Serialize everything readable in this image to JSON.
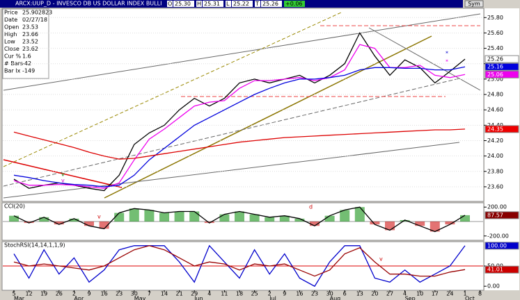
{
  "header": {
    "title": "ARCX:UUP_D - INVESCO DB US DOLLAR INDEX BULLI",
    "fields": [
      {
        "label": "O",
        "value": "25.30"
      },
      {
        "label": "H",
        "value": "25.31"
      },
      {
        "label": "L",
        "value": "25.22"
      },
      {
        "label": "T",
        "value": "25.26"
      }
    ],
    "change": "+0.06",
    "symbol_button": "Sym"
  },
  "info": [
    {
      "label": "Price",
      "value": "25.902823"
    },
    {
      "label": "Date",
      "value": "02/27/18"
    },
    {
      "label": "Open",
      "value": "23.53"
    },
    {
      "label": "High",
      "value": "23.66"
    },
    {
      "label": "Low",
      "value": "23.52"
    },
    {
      "label": "Close",
      "value": "23.62"
    },
    {
      "label": "Cur %",
      "value": "1.6"
    },
    {
      "label": "# Bars",
      "value": "-42"
    },
    {
      "label": "Bar Ix",
      "value": "-149"
    }
  ],
  "annotations": [
    "v",
    "v",
    "v",
    "d",
    "v",
    "*",
    "*"
  ],
  "chart_data": [
    {
      "type": "line",
      "categories": [
        "5",
        "12",
        "19",
        "26",
        "2",
        "9",
        "16",
        "23",
        "30",
        "7",
        "14",
        "21",
        "29",
        "4",
        "11",
        "18",
        "25",
        "2",
        "9",
        "16",
        "23",
        "30",
        "6",
        "13",
        "20",
        "27",
        "4",
        "10",
        "17",
        "24",
        "1",
        "8"
      ],
      "months": [
        "Mar",
        "Apr",
        "May",
        "Jun",
        "Jul",
        "Aug",
        "Sep",
        "Oct"
      ],
      "ylim": [
        23.41,
        25.92
      ],
      "yticks": [
        {
          "value": 23.6,
          "label": "23.60"
        },
        {
          "value": 23.8,
          "label": "23.80"
        },
        {
          "value": 24.0,
          "label": "24.00"
        },
        {
          "value": 24.2,
          "label": "24.20"
        },
        {
          "value": 24.4,
          "label": "24.40"
        },
        {
          "value": 24.6,
          "label": "24.60"
        },
        {
          "value": 24.8,
          "label": "24.80"
        },
        {
          "value": 25.0,
          "label": "25.00"
        },
        {
          "value": 25.2,
          "label": "25.20"
        },
        {
          "value": 25.4,
          "label": "25.40"
        },
        {
          "value": 25.6,
          "label": "25.60"
        },
        {
          "value": 25.8,
          "label": "25.80"
        }
      ],
      "grid": true,
      "series": [
        {
          "color": "#000000",
          "box_text": "#000000",
          "box_fill": "#ffffff",
          "values": [
            23.7,
            23.58,
            23.62,
            23.65,
            23.62,
            23.58,
            23.55,
            23.75,
            24.15,
            24.3,
            24.4,
            24.6,
            24.75,
            24.65,
            24.75,
            24.95,
            25.0,
            24.95,
            25.0,
            25.05,
            24.95,
            25.05,
            25.2,
            25.6,
            25.3,
            25.05,
            25.25,
            25.15,
            24.95,
            25.1,
            25.26,
            null
          ]
        },
        {
          "color": "#ee00ee",
          "box_text": "#ffffff",
          "box_fill": "#ee00ee",
          "values": [
            23.68,
            23.62,
            23.62,
            23.63,
            23.62,
            23.6,
            23.58,
            23.65,
            23.95,
            24.22,
            24.35,
            24.5,
            24.65,
            24.7,
            24.72,
            24.88,
            24.98,
            24.98,
            25.0,
            25.02,
            24.98,
            25.02,
            25.12,
            25.45,
            25.4,
            25.15,
            25.15,
            25.18,
            25.05,
            25.02,
            25.06,
            null
          ]
        },
        {
          "color": "#0000dd",
          "box_text": "#ffffff",
          "box_fill": "#0000dd",
          "values": [
            23.75,
            23.72,
            23.68,
            23.65,
            23.63,
            23.62,
            23.6,
            23.62,
            23.75,
            23.95,
            24.1,
            24.25,
            24.4,
            24.5,
            24.6,
            24.7,
            24.8,
            24.88,
            24.95,
            25.0,
            25.0,
            25.02,
            25.05,
            25.12,
            25.15,
            25.15,
            25.14,
            25.14,
            25.12,
            25.12,
            25.16,
            null
          ]
        },
        {
          "color": "#dd0000",
          "box_text": "#ffffff",
          "box_fill": "#ee0000",
          "values": [
            24.31,
            24.26,
            24.21,
            24.16,
            24.11,
            24.05,
            24.0,
            23.96,
            23.97,
            24.0,
            24.03,
            24.06,
            24.09,
            24.12,
            24.15,
            24.18,
            24.2,
            24.22,
            24.24,
            24.25,
            24.26,
            24.27,
            24.28,
            24.29,
            24.3,
            24.31,
            24.32,
            24.33,
            24.34,
            24.34,
            24.35,
            null
          ]
        }
      ]
    },
    {
      "type": "bar",
      "title": "CCI(20)",
      "ylim": [
        -260,
        260
      ],
      "yticks": [
        {
          "value": 200,
          "label": "200.00"
        },
        {
          "value": -200,
          "label": "-200.00"
        }
      ],
      "pos_color": "#008800",
      "neg_color": "#cc0000",
      "series": [
        {
          "color": "#000000",
          "box_text": "#ffffff",
          "box_fill": "#880000",
          "values": [
            80,
            -20,
            60,
            -40,
            40,
            -60,
            -100,
            120,
            180,
            160,
            120,
            140,
            140,
            -20,
            100,
            140,
            100,
            60,
            80,
            40,
            -60,
            80,
            160,
            200,
            -40,
            -120,
            20,
            -60,
            -140,
            -40,
            87.57,
            null
          ]
        }
      ]
    },
    {
      "type": "line",
      "title": "StochRSI(14,14,1,1,9)",
      "ylim": [
        -10,
        110
      ],
      "yticks": [
        {
          "value": 50,
          "label": "50.00"
        },
        {
          "value": 0,
          "label": "0.00"
        }
      ],
      "refline": 50,
      "series": [
        {
          "color": "#0000cc",
          "box_text": "#ffffff",
          "box_fill": "#0000cc",
          "values": [
            80,
            20,
            90,
            30,
            70,
            10,
            40,
            90,
            100,
            100,
            100,
            60,
            10,
            100,
            60,
            20,
            90,
            30,
            80,
            20,
            0,
            60,
            100,
            100,
            20,
            10,
            40,
            10,
            30,
            50,
            100,
            null
          ],
          "last_label": "100.00"
        },
        {
          "color": "#990000",
          "box_text": "#ffffff",
          "box_fill": "#cc0000",
          "values": [
            60,
            50,
            55,
            50,
            45,
            40,
            50,
            70,
            90,
            100,
            90,
            70,
            50,
            60,
            55,
            40,
            55,
            50,
            55,
            40,
            25,
            40,
            80,
            95,
            60,
            30,
            30,
            25,
            25,
            35,
            41.01,
            null
          ]
        }
      ]
    }
  ]
}
